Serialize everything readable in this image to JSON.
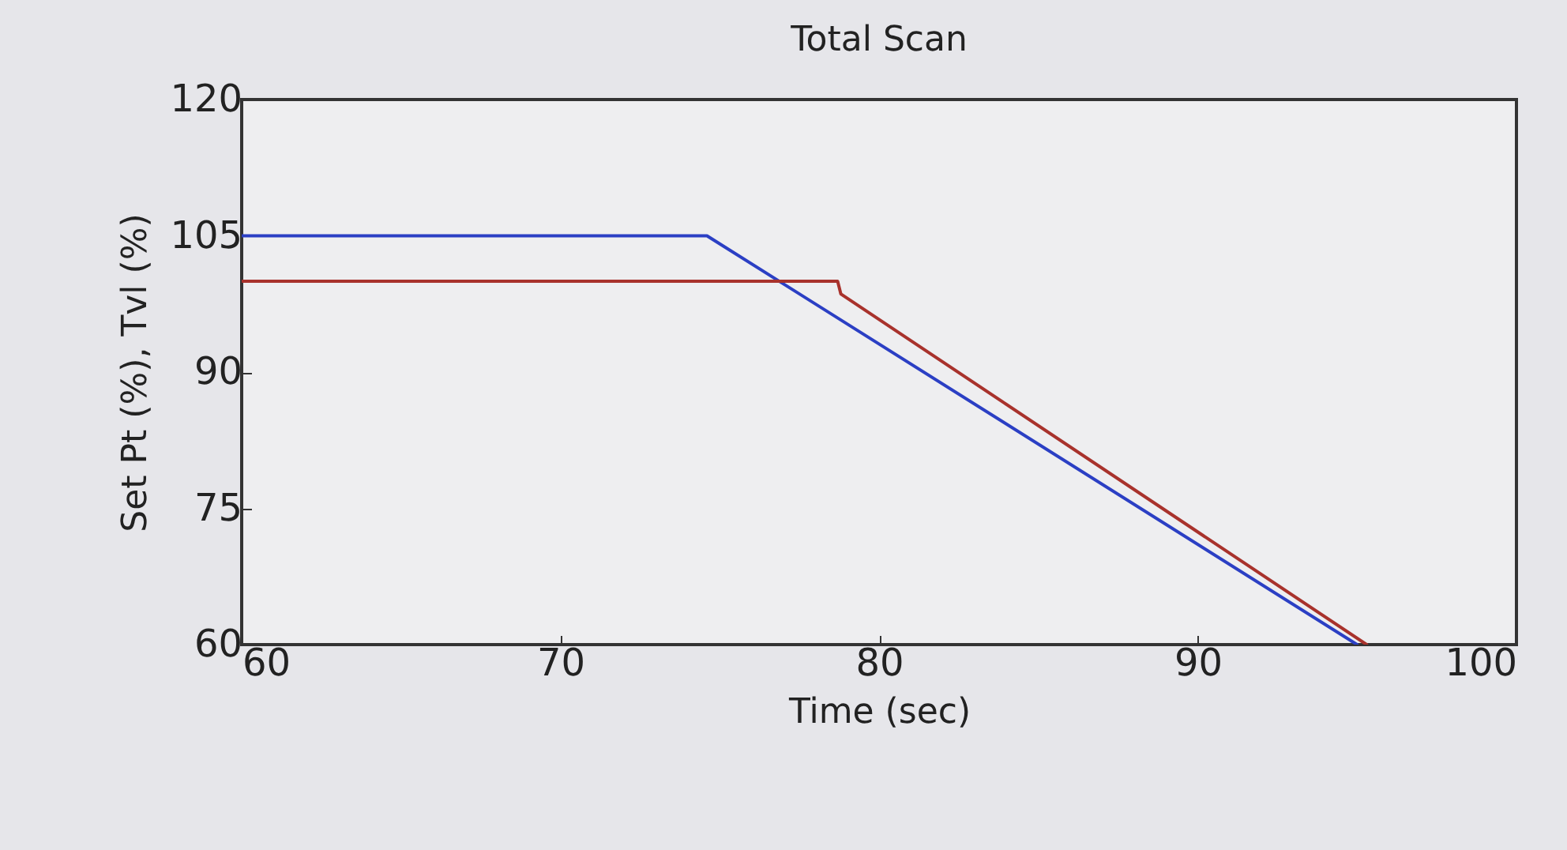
{
  "chart_data": {
    "type": "line",
    "title": "Total Scan",
    "xlabel": "Time (sec)",
    "ylabel": "Set Pt (%), Tvl (%)",
    "xlim": [
      60,
      100
    ],
    "xticks": [
      60,
      70,
      80,
      90,
      100
    ],
    "ylim": [
      60,
      120
    ],
    "yticks": [
      60,
      75,
      90,
      105,
      120
    ],
    "line_style": "solid",
    "marker": "none",
    "series": [
      {
        "color": "#2b3fc4",
        "x": [
          60,
          74.6,
          95.0
        ],
        "values": [
          105,
          105,
          60
        ]
      },
      {
        "color": "#a8322c",
        "x": [
          60,
          78.7,
          78.8,
          95.3
        ],
        "values": [
          100,
          100,
          98.6,
          60
        ]
      }
    ]
  }
}
